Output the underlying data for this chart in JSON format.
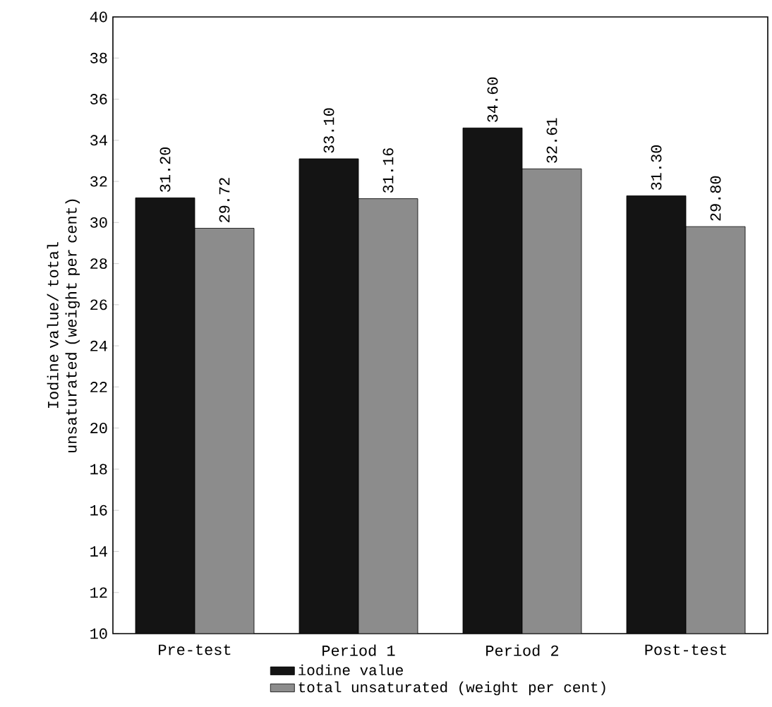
{
  "chart_data": {
    "type": "bar",
    "ylabel": "Iodine value/ total unsaturated (weight per cent)",
    "categories": [
      "Pre-test",
      "Period 1",
      "Period 2",
      "Post-test"
    ],
    "series": [
      {
        "name": "iodine value",
        "color": "#141414",
        "values": [
          31.2,
          33.1,
          34.6,
          31.3
        ],
        "value_labels": [
          "31.20",
          "33.10",
          "34.60",
          "31.30"
        ]
      },
      {
        "name": "total unsaturated (weight per cent)",
        "color": "#8c8c8c",
        "values": [
          29.72,
          31.16,
          32.61,
          29.8
        ],
        "value_labels": [
          "29.72",
          "31.16",
          "32.61",
          "29.80"
        ]
      }
    ],
    "ylim": [
      10,
      40
    ],
    "yticks": [
      10,
      12,
      14,
      16,
      18,
      20,
      22,
      24,
      26,
      28,
      30,
      32,
      34,
      36,
      38,
      40
    ],
    "legend": "bottom",
    "grid": false
  }
}
